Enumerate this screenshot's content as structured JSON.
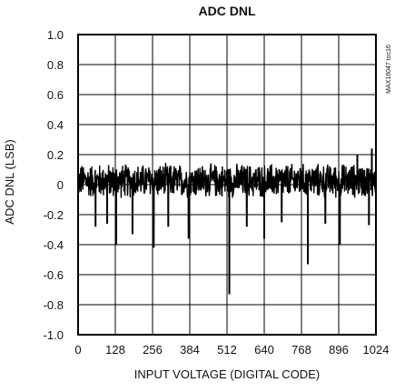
{
  "chart_data": {
    "type": "line",
    "title": "ADC DNL",
    "xlabel": "INPUT VOLTAGE (DIGITAL CODE)",
    "ylabel": "ADC DNL (LSB)",
    "xlim": [
      0,
      1024
    ],
    "ylim": [
      -1.0,
      1.0
    ],
    "xticks": [
      "0",
      "128",
      "256",
      "384",
      "512",
      "640",
      "768",
      "896",
      "1024"
    ],
    "yticks": [
      "1.0",
      "0.8",
      "0.6",
      "0.4",
      "0.2",
      "0",
      "-0.2",
      "-0.4",
      "-0.6",
      "-0.8",
      "-1.0"
    ],
    "grid": true,
    "figure_code": "MAX16047 toc16",
    "noise_band": [
      -0.1,
      0.15
    ],
    "notable_points": [
      {
        "x": 60,
        "y": -0.28
      },
      {
        "x": 100,
        "y": -0.26
      },
      {
        "x": 131,
        "y": -0.4
      },
      {
        "x": 187,
        "y": -0.33
      },
      {
        "x": 260,
        "y": -0.42
      },
      {
        "x": 310,
        "y": -0.28
      },
      {
        "x": 380,
        "y": -0.36
      },
      {
        "x": 520,
        "y": -0.73
      },
      {
        "x": 580,
        "y": -0.28
      },
      {
        "x": 640,
        "y": -0.36
      },
      {
        "x": 700,
        "y": -0.25
      },
      {
        "x": 790,
        "y": -0.53
      },
      {
        "x": 850,
        "y": -0.26
      },
      {
        "x": 900,
        "y": -0.4
      },
      {
        "x": 1000,
        "y": -0.27
      },
      {
        "x": 960,
        "y": 0.2
      },
      {
        "x": 1010,
        "y": 0.24
      }
    ]
  }
}
